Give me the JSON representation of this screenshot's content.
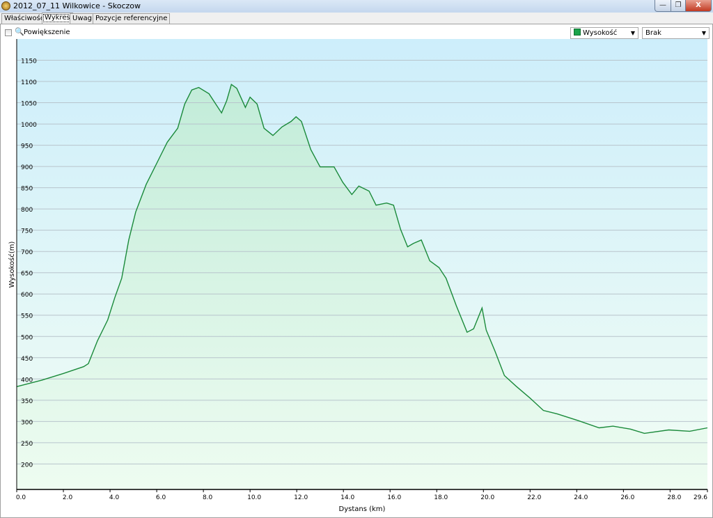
{
  "window": {
    "title": "2012_07_11 Wilkowice - Skoczow",
    "minimize": "—",
    "maximize": "❐",
    "close": "X"
  },
  "tabs": [
    {
      "label": "Właściwości"
    },
    {
      "label": "Wykres",
      "active": true
    },
    {
      "label": "Uwagi"
    },
    {
      "label": "Pozycje referencyjne"
    }
  ],
  "toolbar": {
    "zoom_label": "Powiększenie",
    "zoom_checked": false,
    "series_select": "Wysokość",
    "series_color": "#1aa34a",
    "second_select": "Brak"
  },
  "chart_data": {
    "type": "area",
    "xlabel": "Dystans  (km)",
    "ylabel": "Wysokość(m)",
    "xlim": [
      0,
      29.6
    ],
    "ylim": [
      140,
      1200
    ],
    "xticks": [
      "0.0",
      "2.0",
      "4.0",
      "6.0",
      "8.0",
      "10.0",
      "12.0",
      "14.0",
      "16.0",
      "18.0",
      "20.0",
      "22.0",
      "24.0",
      "26.0",
      "28.0",
      "29.6"
    ],
    "yticks": [
      200,
      250,
      300,
      350,
      400,
      450,
      500,
      550,
      600,
      650,
      700,
      750,
      800,
      850,
      900,
      950,
      1000,
      1050,
      1100,
      1150
    ],
    "grid": true,
    "line_color": "#1a8a3a",
    "series": [
      {
        "name": "Wysokość",
        "x": [
          0,
          1.07,
          2.0,
          2.87,
          3.07,
          3.46,
          3.9,
          4.2,
          4.5,
          4.8,
          5.1,
          5.55,
          5.85,
          6.15,
          6.45,
          6.9,
          7.2,
          7.5,
          7.8,
          8.24,
          8.78,
          9.0,
          9.2,
          9.43,
          9.8,
          10.0,
          10.3,
          10.6,
          10.98,
          11.37,
          11.76,
          11.97,
          12.2,
          12.6,
          13.0,
          13.6,
          13.97,
          14.36,
          14.66,
          15.1,
          15.4,
          15.85,
          16.15,
          16.45,
          16.75,
          17.0,
          17.34,
          17.7,
          18.1,
          18.4,
          18.84,
          19.3,
          19.58,
          19.94,
          20.12,
          20.5,
          20.9,
          21.4,
          22.0,
          22.57,
          23.16,
          24.06,
          24.96,
          25.55,
          26.3,
          26.9,
          27.94,
          28.84,
          29.6
        ],
        "y": [
          382,
          397,
          413,
          429,
          436,
          490,
          539,
          591,
          637,
          727,
          793,
          858,
          891,
          924,
          957,
          990,
          1047,
          1080,
          1086,
          1071,
          1026,
          1055,
          1093,
          1084,
          1039,
          1063,
          1047,
          990,
          973,
          993,
          1006,
          1017,
          1006,
          940,
          899,
          899,
          863,
          834,
          854,
          842,
          809,
          814,
          809,
          752,
          711,
          719,
          727,
          678,
          662,
          637,
          572,
          510,
          518,
          567,
          515,
          465,
          408,
          383,
          355,
          326,
          318,
          302,
          285,
          289,
          282,
          272,
          280,
          277,
          285
        ]
      }
    ]
  }
}
